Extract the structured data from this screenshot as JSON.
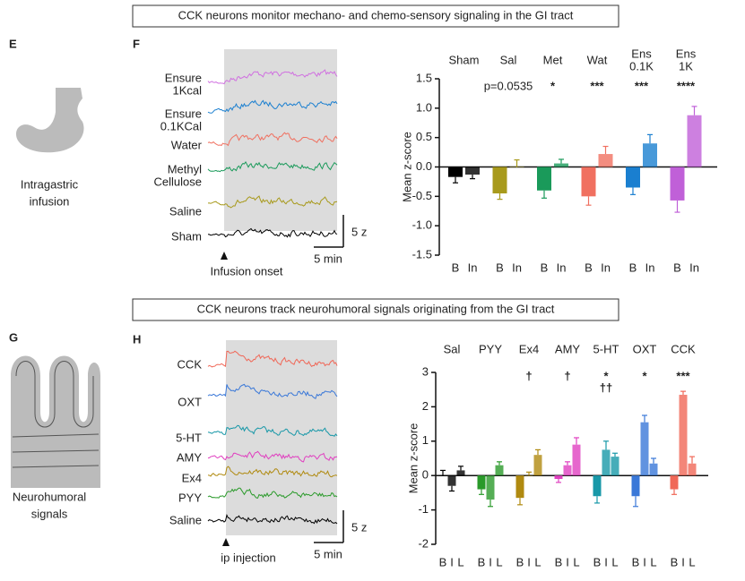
{
  "headers": [
    "CCK neurons monitor mechano- and chemo-sensory signaling in the GI tract",
    "CCK neurons track neurohumoral signals originating from the GI tract"
  ],
  "panels": {
    "E": {
      "letter": "E",
      "caption": [
        "Intragastric",
        "infusion"
      ]
    },
    "F": {
      "letter": "F",
      "traces": [
        {
          "lines": [
            "Ensure",
            "1Kcal"
          ],
          "color": "#d070e0"
        },
        {
          "lines": [
            "Ensure",
            "0.1KCal"
          ],
          "color": "#1a7fd0"
        },
        {
          "lines": [
            "Water"
          ],
          "color": "#f07060"
        },
        {
          "lines": [
            "Methyl",
            "Cellulose"
          ],
          "color": "#1a9a5a"
        },
        {
          "lines": [
            "Saline"
          ],
          "color": "#a89a1c"
        },
        {
          "lines": [
            "Sham"
          ],
          "color": "#000000"
        }
      ],
      "scale_z": "5 z",
      "scale_t": "5 min",
      "onset": "Infusion onset"
    },
    "G": {
      "letter": "G",
      "caption": [
        "Neurohumoral",
        "signals"
      ]
    },
    "H": {
      "letter": "H",
      "traces": [
        {
          "lines": [
            "CCK"
          ],
          "color": "#f06858"
        },
        {
          "lines": [
            "OXT"
          ],
          "color": "#3a78d8"
        },
        {
          "lines": [
            "5-HT"
          ],
          "color": "#1898a8"
        },
        {
          "lines": [
            "AMY"
          ],
          "color": "#e040c0"
        },
        {
          "lines": [
            "Ex4"
          ],
          "color": "#b08a10"
        },
        {
          "lines": [
            "PYY"
          ],
          "color": "#2a9a2a"
        },
        {
          "lines": [
            "Saline"
          ],
          "color": "#000000"
        }
      ],
      "scale_z": "5 z",
      "scale_t": "5 min",
      "onset": "ip injection"
    }
  },
  "chart_data": [
    {
      "type": "bar",
      "ylabel": "Mean z-score",
      "ylim": [
        -1.5,
        1.5
      ],
      "yticks": [
        1.5,
        {
          "value": 1,
          "label": "1.0"
        },
        0.5,
        {
          "value": 0,
          "label": "0.0"
        },
        -0.5,
        {
          "value": -1,
          "label": "-1.0"
        },
        -1.5
      ],
      "groups": [
        {
          "name_lines": [
            "Sham"
          ],
          "color": "#000000",
          "categories": [
            "B",
            "In"
          ],
          "values": [
            -0.17,
            -0.13
          ],
          "errors": [
            0.1,
            0.07
          ]
        },
        {
          "name_lines": [
            "Sal"
          ],
          "color": "#a89a1c",
          "annotation_lines": [
            "p=0.0535"
          ],
          "categories": [
            "B",
            "In"
          ],
          "values": [
            -0.45,
            0.0
          ],
          "errors": [
            0.1,
            0.12
          ]
        },
        {
          "name_lines": [
            "Met"
          ],
          "color": "#1a9a5a",
          "annotation_lines": [
            "*"
          ],
          "categories": [
            "B",
            "In"
          ],
          "values": [
            -0.4,
            0.06
          ],
          "errors": [
            0.13,
            0.07
          ]
        },
        {
          "name_lines": [
            "Wat"
          ],
          "color": "#f07060",
          "annotation_lines": [
            "***"
          ],
          "categories": [
            "B",
            "In"
          ],
          "values": [
            -0.5,
            0.22
          ],
          "errors": [
            0.15,
            0.13
          ]
        },
        {
          "name_lines": [
            "Ens",
            "0.1K"
          ],
          "color": "#1a7fd0",
          "annotation_lines": [
            "***"
          ],
          "categories": [
            "B",
            "In"
          ],
          "values": [
            -0.35,
            0.4
          ],
          "errors": [
            0.12,
            0.15
          ]
        },
        {
          "name_lines": [
            "Ens",
            "1K"
          ],
          "color": "#c060d8",
          "annotation_lines": [
            "****"
          ],
          "categories": [
            "B",
            "In"
          ],
          "values": [
            -0.57,
            0.88
          ],
          "errors": [
            0.2,
            0.15
          ]
        }
      ]
    },
    {
      "type": "bar",
      "ylabel": "Mean z-score",
      "ylim": [
        -2,
        3
      ],
      "yticks": [
        -2,
        -1,
        0,
        1,
        2,
        3
      ],
      "groups": [
        {
          "name_lines": [
            "Sal"
          ],
          "color": "#000000",
          "categories": [
            "B",
            "I",
            "L"
          ],
          "values": [
            0.0,
            -0.3,
            0.15
          ],
          "errors": [
            0.15,
            0.15,
            0.12
          ]
        },
        {
          "name_lines": [
            "PYY"
          ],
          "color": "#2a9a2a",
          "categories": [
            "B",
            "I",
            "L"
          ],
          "values": [
            -0.4,
            -0.7,
            0.3
          ],
          "errors": [
            0.15,
            0.2,
            0.1
          ]
        },
        {
          "name_lines": [
            "Ex4"
          ],
          "color": "#b08a10",
          "annotation_lines": [
            "†"
          ],
          "categories": [
            "B",
            "I",
            "L"
          ],
          "values": [
            -0.65,
            0.0,
            0.6
          ],
          "errors": [
            0.2,
            0.1,
            0.15
          ]
        },
        {
          "name_lines": [
            "AMY"
          ],
          "color": "#e040c0",
          "annotation_lines": [
            "†"
          ],
          "categories": [
            "B",
            "I",
            "L"
          ],
          "values": [
            -0.1,
            0.3,
            0.9
          ],
          "errors": [
            0.1,
            0.1,
            0.2
          ]
        },
        {
          "name_lines": [
            "5-HT"
          ],
          "color": "#1898a8",
          "annotation_lines": [
            "*",
            "††"
          ],
          "categories": [
            "B",
            "I",
            "L"
          ],
          "values": [
            -0.6,
            0.75,
            0.55
          ],
          "errors": [
            0.2,
            0.25,
            0.1
          ]
        },
        {
          "name_lines": [
            "OXT"
          ],
          "color": "#3a78d8",
          "annotation_lines": [
            "*"
          ],
          "categories": [
            "B",
            "I",
            "L"
          ],
          "values": [
            -0.6,
            1.55,
            0.35
          ],
          "errors": [
            0.3,
            0.2,
            0.15
          ]
        },
        {
          "name_lines": [
            "CCK"
          ],
          "color": "#f06858",
          "annotation_lines": [
            "***"
          ],
          "categories": [
            "B",
            "I",
            "L"
          ],
          "values": [
            -0.4,
            2.35,
            0.35
          ],
          "errors": [
            0.15,
            0.1,
            0.2
          ]
        }
      ]
    }
  ]
}
